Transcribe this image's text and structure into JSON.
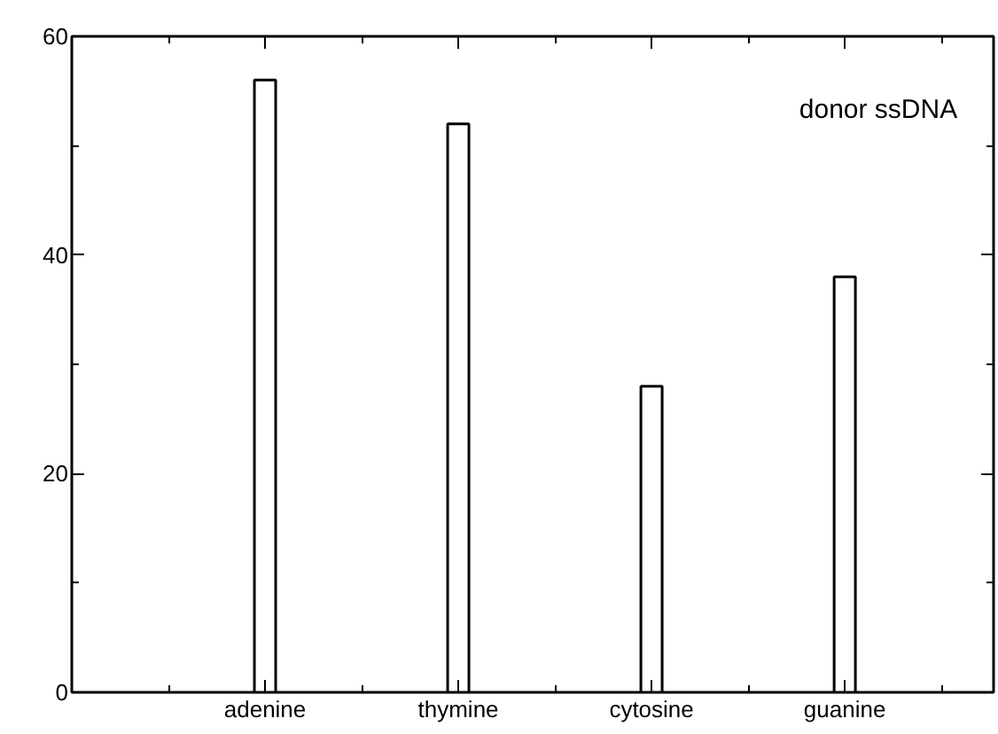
{
  "chart_data": {
    "type": "bar",
    "categories": [
      "adenine",
      "thymine",
      "cytosine",
      "guanine"
    ],
    "values": [
      56,
      52,
      28,
      38
    ],
    "color": "#ffffff",
    "ylim": [
      0,
      60
    ],
    "yticks": [
      0,
      {
        "value": 10,
        "label": null
      },
      20,
      {
        "value": 30,
        "label": null
      },
      40,
      {
        "value": 50,
        "label": null
      },
      60
    ],
    "annotations": [
      "donor ssDNA"
    ],
    "grid": false
  }
}
